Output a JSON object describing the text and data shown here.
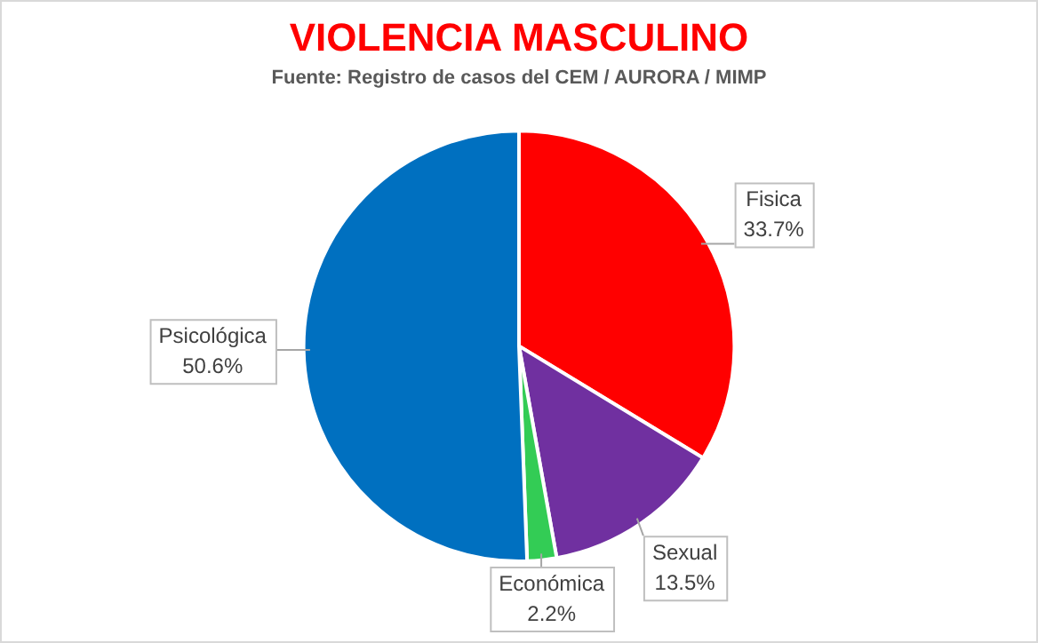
{
  "chart_data": {
    "type": "pie",
    "title": "VIOLENCIA MASCULINO",
    "subtitle": "Fuente: Registro de casos del CEM / AURORA / MIMP",
    "categories": [
      "Fisica",
      "Sexual",
      "Económica",
      "Psicológica"
    ],
    "values": [
      33.7,
      13.5,
      2.2,
      50.6
    ],
    "colors": [
      "#ff0000",
      "#7030a0",
      "#33cc55",
      "#0070c0"
    ],
    "value_labels": [
      "33.7%",
      "13.5%",
      "2.2%",
      "50.6%"
    ],
    "legend": false
  }
}
